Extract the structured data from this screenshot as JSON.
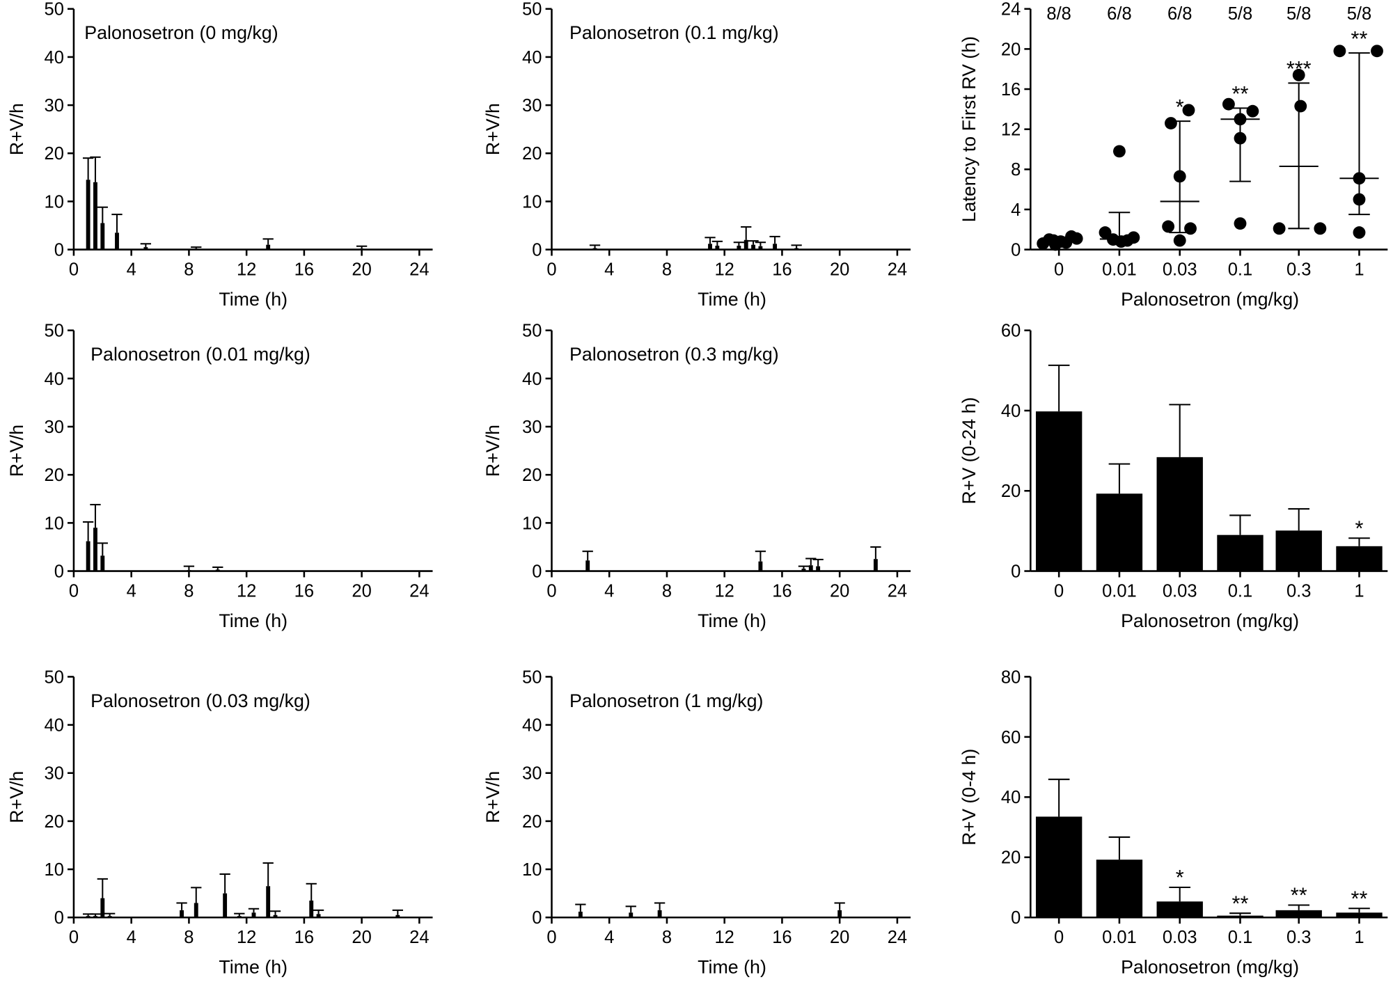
{
  "chart_data": [
    {
      "type": "bar",
      "title": "Palonosetron (0 mg/kg)",
      "xlabel": "Time (h)",
      "ylabel": "R+V/h",
      "xlim": [
        0,
        24
      ],
      "ylim": [
        0,
        50
      ],
      "xticks": [
        0,
        4,
        8,
        12,
        16,
        20,
        24
      ],
      "yticks": [
        0,
        10,
        20,
        30,
        40,
        50
      ],
      "x": [
        1,
        1.5,
        2,
        3,
        5,
        8.5,
        13.5,
        20
      ],
      "values": [
        14.5,
        14.0,
        5.5,
        3.5,
        0.5,
        0.2,
        1.0,
        0.2
      ],
      "error_top": [
        19.0,
        19.2,
        8.8,
        7.3,
        1.2,
        0.5,
        2.2,
        0.7
      ]
    },
    {
      "type": "bar",
      "title": "Palonosetron (0.1 mg/kg)",
      "xlabel": "Time (h)",
      "ylabel": "R+V/h",
      "xlim": [
        0,
        24
      ],
      "ylim": [
        0,
        50
      ],
      "xticks": [
        0,
        4,
        8,
        12,
        16,
        20,
        24
      ],
      "yticks": [
        0,
        10,
        20,
        30,
        40,
        50
      ],
      "x": [
        3,
        11,
        11.5,
        13,
        13.5,
        14,
        14.5,
        15.5,
        17
      ],
      "values": [
        0.3,
        1.2,
        0.8,
        0.8,
        2.0,
        1.0,
        0.7,
        1.2,
        0.3
      ],
      "error_top": [
        0.9,
        2.5,
        1.7,
        1.5,
        4.7,
        1.8,
        1.5,
        2.7,
        0.9
      ]
    },
    {
      "type": "scatter",
      "xlabel": "Palonosetron (mg/kg)",
      "ylabel": "Latency to First RV (h)",
      "ylim": [
        0,
        24
      ],
      "yticks": [
        0,
        4,
        8,
        12,
        16,
        20,
        24
      ],
      "categories": [
        "0",
        "0.01",
        "0.03",
        "0.1",
        "0.3",
        "1"
      ],
      "responders": [
        "8/8",
        "6/8",
        "6/8",
        "5/8",
        "5/8",
        "5/8"
      ],
      "points": [
        [
          0.6,
          1.0,
          0.5,
          0.8,
          0.7,
          1.3,
          1.1,
          0.9
        ],
        [
          1.7,
          9.8,
          1.0,
          0.8,
          0.9,
          1.2
        ],
        [
          13.9,
          12.6,
          7.3,
          2.3,
          2.1,
          0.9
        ],
        [
          14.5,
          13.0,
          13.8,
          11.1,
          2.6
        ],
        [
          17.4,
          14.3,
          2.1,
          2.1
        ],
        [
          19.8,
          19.8,
          7.1,
          5.0,
          1.7
        ]
      ],
      "center": [
        0.85,
        1.05,
        4.8,
        13.0,
        8.3,
        7.1
      ],
      "error_low": [
        0.6,
        0.8,
        1.7,
        6.8,
        2.1,
        3.5
      ],
      "error_high": [
        1.1,
        3.7,
        12.8,
        14.1,
        16.6,
        19.6
      ],
      "significance": [
        "",
        "",
        "*",
        "**",
        "***",
        "**"
      ]
    },
    {
      "type": "bar",
      "title": "Palonosetron (0.01 mg/kg)",
      "xlabel": "Time (h)",
      "ylabel": "R+V/h",
      "xlim": [
        0,
        24
      ],
      "ylim": [
        0,
        50
      ],
      "xticks": [
        0,
        4,
        8,
        12,
        16,
        20,
        24
      ],
      "yticks": [
        0,
        10,
        20,
        30,
        40,
        50
      ],
      "x": [
        1,
        1.5,
        2,
        8,
        10
      ],
      "values": [
        6.2,
        9.0,
        3.2,
        0.2,
        0.3
      ],
      "error_top": [
        10.2,
        13.8,
        5.8,
        1.0,
        0.8
      ]
    },
    {
      "type": "bar",
      "title": "Palonosetron (0.3 mg/kg)",
      "xlabel": "Time (h)",
      "ylabel": "R+V/h",
      "xlim": [
        0,
        24
      ],
      "ylim": [
        0,
        50
      ],
      "xticks": [
        0,
        4,
        8,
        12,
        16,
        20,
        24
      ],
      "yticks": [
        0,
        10,
        20,
        30,
        40,
        50
      ],
      "x": [
        2.5,
        14.5,
        17.5,
        18,
        18.5,
        22.5
      ],
      "values": [
        2.2,
        2.0,
        0.5,
        1.2,
        1.0,
        2.5
      ],
      "error_top": [
        4.1,
        4.1,
        1.0,
        2.6,
        2.4,
        5.0
      ]
    },
    {
      "type": "bar",
      "xlabel": "Palonosetron (mg/kg)",
      "ylabel": "R+V (0-24 h)",
      "ylim": [
        0,
        60
      ],
      "yticks": [
        0,
        20,
        40,
        60
      ],
      "categories": [
        "0",
        "0.01",
        "0.03",
        "0.1",
        "0.3",
        "1"
      ],
      "values": [
        39.8,
        19.3,
        28.4,
        9.0,
        10.1,
        6.2
      ],
      "error_top": [
        51.3,
        26.7,
        41.5,
        13.9,
        15.5,
        8.2
      ],
      "significance": [
        "",
        "",
        "",
        "",
        "",
        "*"
      ]
    },
    {
      "type": "bar",
      "title": "Palonosetron (0.03 mg/kg)",
      "xlabel": "Time (h)",
      "ylabel": "R+V/h",
      "xlim": [
        0,
        24
      ],
      "ylim": [
        0,
        50
      ],
      "xticks": [
        0,
        4,
        8,
        12,
        16,
        20,
        24
      ],
      "yticks": [
        0,
        10,
        20,
        30,
        40,
        50
      ],
      "x": [
        1,
        1.5,
        2,
        2.5,
        7.5,
        8.5,
        10.5,
        11.5,
        12.5,
        13.5,
        14,
        16.5,
        17,
        22.5
      ],
      "values": [
        0.3,
        0.3,
        4.0,
        0.3,
        1.5,
        3.0,
        5.0,
        0.3,
        1.0,
        6.5,
        0.5,
        3.5,
        0.7,
        0.5
      ],
      "error_top": [
        0.7,
        0.7,
        8.0,
        0.8,
        3.0,
        6.2,
        9.0,
        0.8,
        1.8,
        11.3,
        1.3,
        7.0,
        1.5,
        1.5
      ]
    },
    {
      "type": "bar",
      "title": "Palonosetron (1 mg/kg)",
      "xlabel": "Time (h)",
      "ylabel": "R+V/h",
      "xlim": [
        0,
        24
      ],
      "ylim": [
        0,
        50
      ],
      "xticks": [
        0,
        4,
        8,
        12,
        16,
        20,
        24
      ],
      "yticks": [
        0,
        10,
        20,
        30,
        40,
        50
      ],
      "x": [
        2,
        5.5,
        7.5,
        20
      ],
      "values": [
        1.2,
        1.0,
        1.5,
        1.5
      ],
      "error_top": [
        2.7,
        2.3,
        3.0,
        3.0
      ]
    },
    {
      "type": "bar",
      "xlabel": "Palonosetron (mg/kg)",
      "ylabel": "R+V (0-4 h)",
      "ylim": [
        0,
        80
      ],
      "yticks": [
        0,
        20,
        40,
        60,
        80
      ],
      "categories": [
        "0",
        "0.01",
        "0.03",
        "0.1",
        "0.3",
        "1"
      ],
      "values": [
        33.5,
        19.2,
        5.3,
        0.6,
        2.4,
        1.6
      ],
      "error_top": [
        45.9,
        26.7,
        10.0,
        1.4,
        4.1,
        3.0
      ],
      "significance": [
        "",
        "",
        "*",
        "**",
        "**",
        "**"
      ]
    }
  ]
}
